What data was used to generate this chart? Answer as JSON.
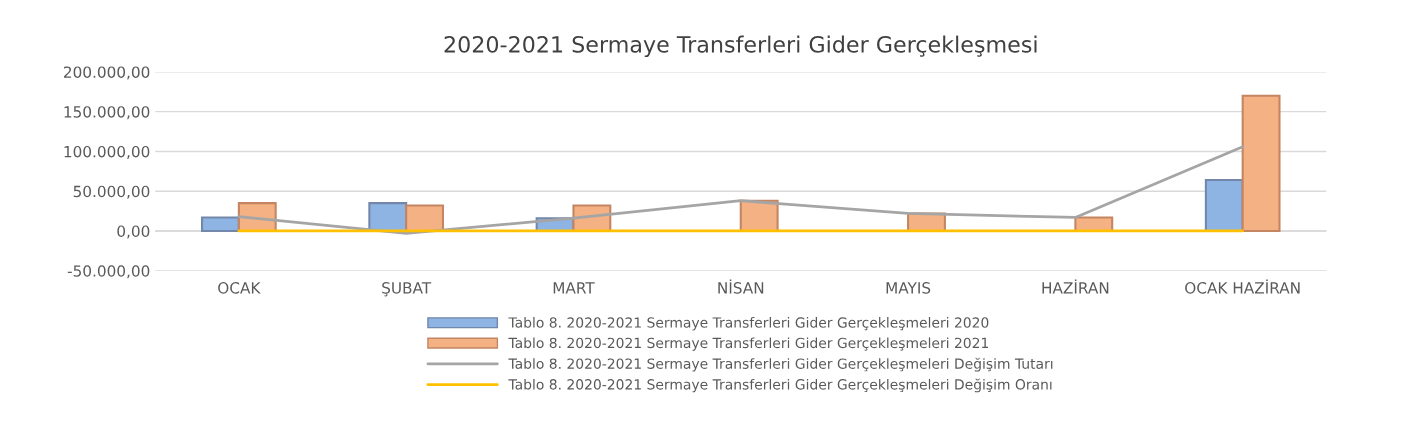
{
  "chart_data": {
    "type": "bar",
    "title": "2020-2021 Sermaye Transferleri Gider Gerçekleşmesi",
    "categories": [
      "OCAK",
      "ŞUBAT",
      "MART",
      "NİSAN",
      "MAYIS",
      "HAZİRAN",
      "OCAK HAZİRAN"
    ],
    "series": [
      {
        "name": "Tablo 8. 2020-2021 Sermaye Transferleri Gider Gerçekleşmeleri 2020",
        "color": "#8eb4e3",
        "values": [
          17000,
          35000,
          16000,
          0,
          0,
          0,
          64000
        ]
      },
      {
        "name": "Tablo 8. 2020-2021 Sermaye Transferleri Gider Gerçekleşmeleri 2021",
        "color": "#f4b183",
        "values": [
          35000,
          32000,
          32000,
          38000,
          22000,
          17000,
          170000
        ]
      },
      {
        "name": "Tablo 8. 2020-2021 Sermaye Transferleri Gider Gerçekleşmeleri Değişim Tutarı",
        "type": "line",
        "color": "#a5a5a5",
        "values": [
          18000,
          -3000,
          16000,
          38000,
          22000,
          17000,
          106000
        ]
      },
      {
        "name": "Tablo 8. 2020-2021 Sermaye Transferleri Gider Gerçekleşmeleri Değişim Oranı",
        "type": "line",
        "color": "#ffc000",
        "values": [
          0,
          0,
          0,
          0,
          0,
          0,
          0
        ]
      }
    ],
    "ylim": [
      -50000,
      200000
    ],
    "yticks": [
      {
        "value": -50000,
        "label": "-50.000,00"
      },
      {
        "value": 0,
        "label": "0,00"
      },
      {
        "value": 50000,
        "label": "50.000,00"
      },
      {
        "value": 100000,
        "label": "100.000,00"
      },
      {
        "value": 150000,
        "label": "150.000,00"
      },
      {
        "value": 200000,
        "label": "200.000,00"
      }
    ],
    "grid": "y",
    "legend": "bottom",
    "marker": "none",
    "line_style": "solid"
  }
}
